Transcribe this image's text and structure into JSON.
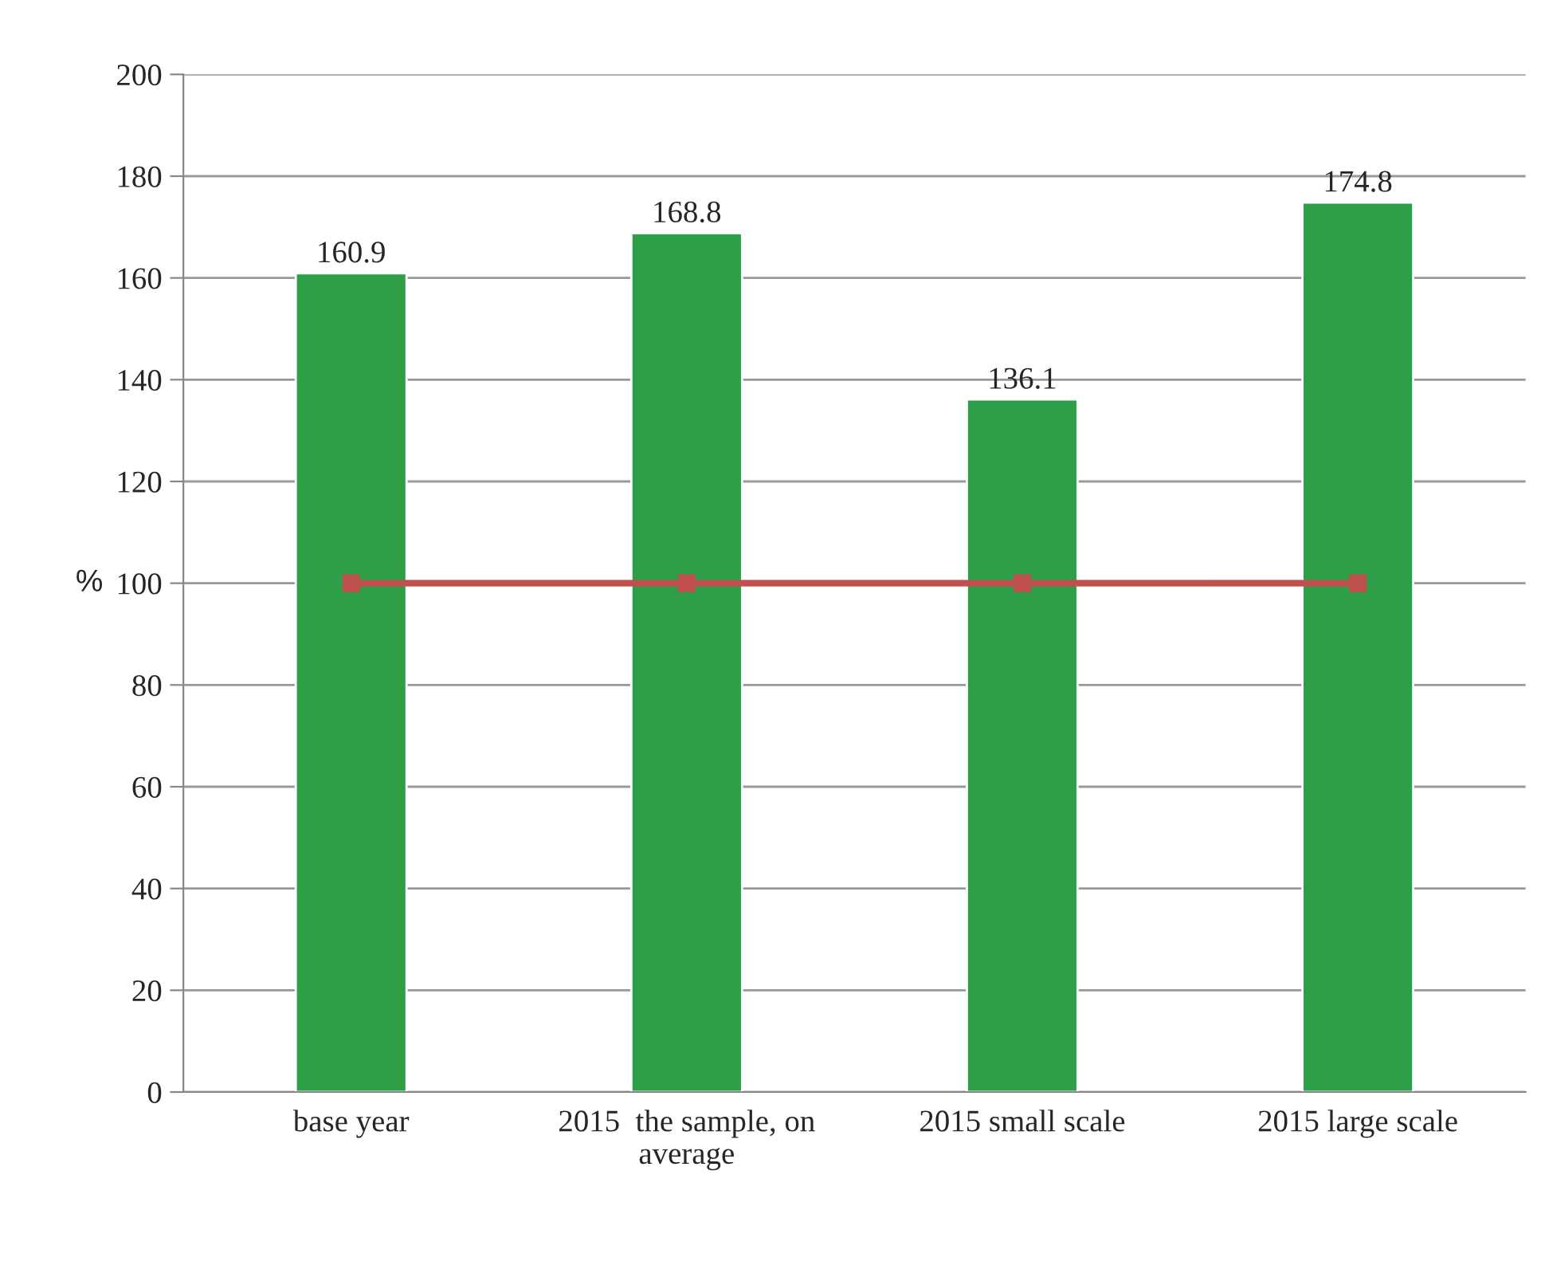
{
  "chart_data": {
    "type": "bar",
    "categories": [
      "base year",
      "2015  the sample, on\naverage",
      "2015 small scale",
      "2015 large scale"
    ],
    "ylabel": "%",
    "ylim": [
      0,
      200
    ],
    "yticks": [
      0,
      20,
      40,
      60,
      80,
      100,
      120,
      140,
      160,
      180,
      200
    ],
    "grid": "y",
    "series": [
      {
        "color": "#2e9e48",
        "values": [
          160.9,
          168.8,
          136.1,
          174.8
        ],
        "value_labels": [
          "160.9",
          "168.8",
          "136.1",
          "174.8"
        ]
      },
      {
        "type": "line",
        "color": "#c0504d",
        "values": [
          100,
          100,
          100,
          100
        ],
        "marker": "square",
        "line_style": "solid"
      }
    ]
  }
}
